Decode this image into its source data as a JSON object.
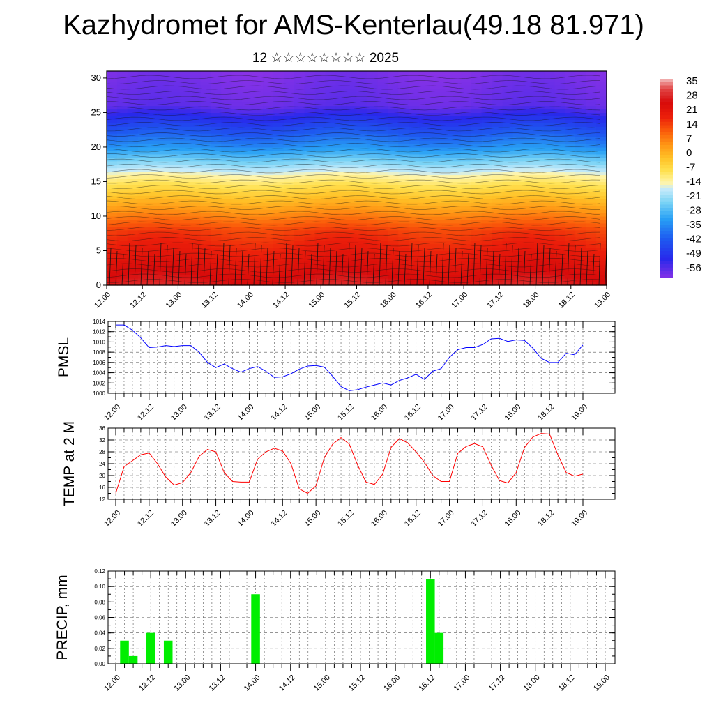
{
  "page": {
    "title": "Kazhydromet for AMS-Kenterlau(49.18 81.971)",
    "subtitle": "12 ☆☆☆☆☆☆☆☆ 2025"
  },
  "chart_data": [
    {
      "type": "heatmap",
      "description_ylabel": "",
      "xlabel": "",
      "ylabel": "",
      "x_ticks": [
        "12.00",
        "12.12",
        "13.00",
        "13.12",
        "14.00",
        "14.12",
        "15.00",
        "15.12",
        "16.00",
        "16.12",
        "17.00",
        "17.12",
        "18.00",
        "18.12",
        "19.00"
      ],
      "y_ticks": [
        0,
        5,
        10,
        15,
        20,
        25,
        30
      ],
      "ylim": [
        0,
        31
      ],
      "colorbar_labels": [
        35,
        28,
        21,
        14,
        7,
        0,
        -7,
        -14,
        -21,
        -28,
        -35,
        -42,
        -49,
        -56
      ],
      "colorbar_range": [
        -60,
        39
      ],
      "overlay": "wind barbs"
    },
    {
      "type": "line",
      "ylabel": "PMSL",
      "x_ticks": [
        "12.00",
        "12.12",
        "13.00",
        "13.12",
        "14.00",
        "14.12",
        "15.00",
        "15.12",
        "16.00",
        "16.12",
        "17.00",
        "17.12",
        "18.00",
        "18.12",
        "19.00"
      ],
      "y_ticks": [
        1000,
        1002,
        1004,
        1006,
        1008,
        1010,
        1012,
        1014
      ],
      "ylim": [
        1000,
        1014
      ],
      "grid": true,
      "color": "#0000ff",
      "series": [
        {
          "values": [
            1013.3,
            1013.3,
            1012.3,
            1010.8,
            1008.9,
            1009.0,
            1009.3,
            1009.1,
            1009.3,
            1009.3,
            1008.0,
            1006.0,
            1005.0,
            1005.7,
            1004.8,
            1004.1,
            1004.8,
            1005.2,
            1004.3,
            1003.1,
            1003.2,
            1003.8,
            1004.7,
            1005.3,
            1005.4,
            1005.1,
            1003.3,
            1001.3,
            1000.5,
            1000.7,
            1001.2,
            1001.6,
            1002.0,
            1001.6,
            1002.5,
            1003.0,
            1003.7,
            1002.7,
            1004.3,
            1004.8,
            1007.0,
            1008.5,
            1008.9,
            1008.9,
            1009.5,
            1010.6,
            1010.7,
            1010.1,
            1010.4,
            1010.3,
            1008.8,
            1006.8,
            1006.0,
            1006.0,
            1007.8,
            1007.5,
            1009.4
          ]
        }
      ]
    },
    {
      "type": "line",
      "ylabel": "TEMP at 2 M",
      "x_ticks": [
        "12.00",
        "12.12",
        "13.00",
        "13.12",
        "14.00",
        "14.12",
        "15.00",
        "15.12",
        "16.00",
        "16.12",
        "17.00",
        "17.12",
        "18.00",
        "18.12",
        "19.00"
      ],
      "y_ticks": [
        12,
        16,
        20,
        24,
        28,
        32,
        36
      ],
      "ylim": [
        12,
        36
      ],
      "grid": true,
      "color": "#ff0000",
      "series": [
        {
          "values": [
            14.0,
            23.0,
            25.0,
            27.0,
            27.6,
            24.0,
            19.5,
            16.8,
            17.6,
            21.0,
            26.5,
            28.8,
            28.0,
            21.0,
            18.0,
            17.8,
            17.8,
            25.5,
            28.0,
            29.2,
            28.3,
            24.0,
            15.5,
            14.0,
            16.5,
            26.0,
            30.6,
            32.8,
            30.6,
            23.5,
            17.8,
            17.0,
            20.5,
            29.5,
            32.5,
            31.0,
            28.0,
            24.5,
            20.0,
            18.0,
            18.0,
            27.5,
            29.8,
            30.8,
            29.7,
            23.5,
            18.3,
            17.5,
            21.0,
            29.5,
            33.0,
            34.2,
            34.0,
            27.0,
            21.0,
            19.8,
            20.5
          ]
        }
      ]
    },
    {
      "type": "bar",
      "ylabel": "PRECIP, mm",
      "x_ticks": [
        "12.00",
        "12.12",
        "13.00",
        "13.12",
        "14.00",
        "14.12",
        "15.00",
        "15.12",
        "16.00",
        "16.12",
        "17.00",
        "17.12",
        "18.00",
        "18.12",
        "19.00"
      ],
      "y_ticks": [
        0.0,
        0.02,
        0.04,
        0.06,
        0.08,
        0.1,
        0.12
      ],
      "ylim": [
        0,
        0.12
      ],
      "grid": true,
      "color": "#00ee00",
      "values": [
        0,
        0.03,
        0.01,
        0,
        0.04,
        0,
        0.03,
        0,
        0,
        0,
        0,
        0,
        0,
        0,
        0,
        0,
        0.09,
        0,
        0,
        0,
        0,
        0,
        0,
        0,
        0,
        0,
        0,
        0,
        0,
        0,
        0,
        0,
        0,
        0,
        0,
        0,
        0.11,
        0.04,
        0,
        0,
        0,
        0,
        0,
        0,
        0,
        0,
        0,
        0,
        0,
        0,
        0,
        0,
        0,
        0,
        0,
        0,
        0
      ]
    }
  ]
}
